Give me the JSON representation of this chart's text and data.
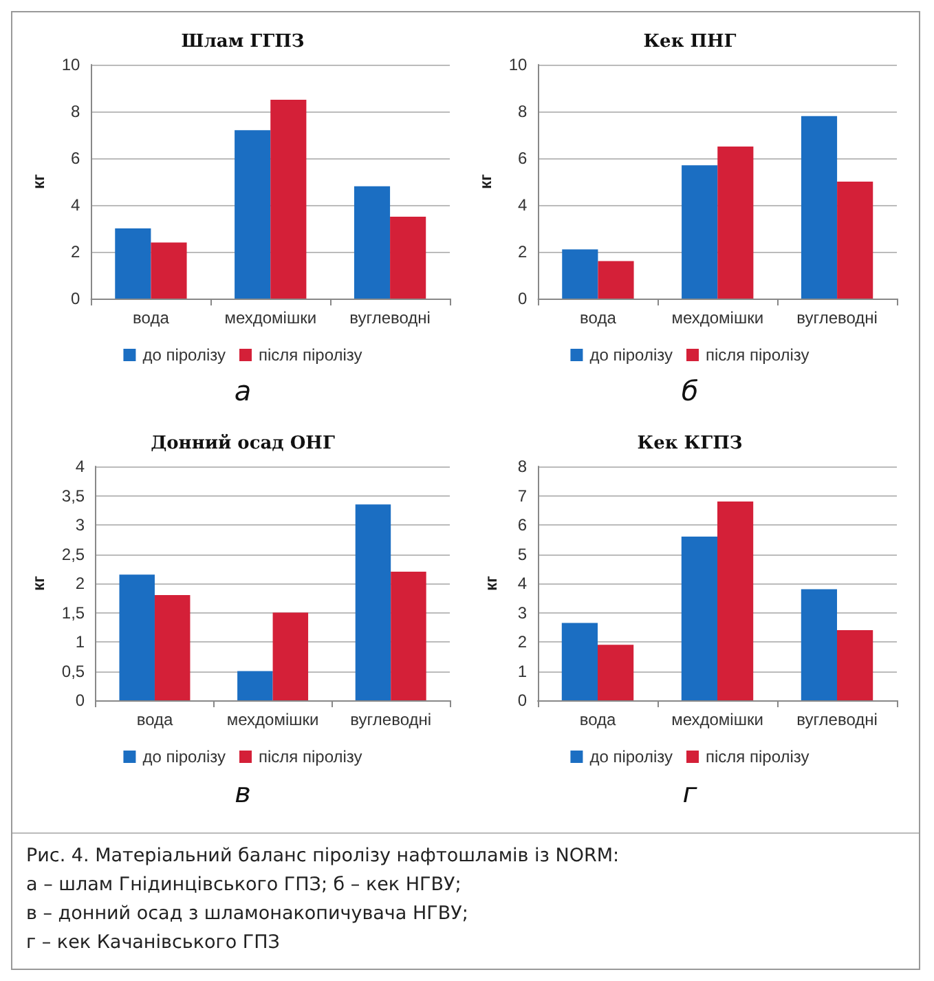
{
  "chart_data": [
    {
      "type": "bar",
      "title": "Шлам ГГПЗ",
      "ylabel": "кг",
      "categories": [
        "вода",
        "мехдомішки",
        "вуглеводні"
      ],
      "annotations": [
        "а"
      ],
      "series": [
        {
          "name": "до піролізу",
          "color": "#1b6ec2",
          "values": [
            3.0,
            7.2,
            4.8
          ]
        },
        {
          "name": "після піролізу",
          "color": "#d42038",
          "values": [
            2.4,
            8.5,
            3.5
          ]
        }
      ],
      "ylim": [
        0,
        10
      ],
      "yticks": [
        0,
        2,
        4,
        6,
        8,
        10
      ],
      "grid": "y",
      "legend": "bottom"
    },
    {
      "type": "bar",
      "title": "Кек ПНГ",
      "ylabel": "кг",
      "categories": [
        "вода",
        "мехдомішки",
        "вуглеводні"
      ],
      "annotations": [
        "б"
      ],
      "series": [
        {
          "name": "до піролізу",
          "color": "#1b6ec2",
          "values": [
            2.1,
            5.7,
            7.8
          ]
        },
        {
          "name": "після піролізу",
          "color": "#d42038",
          "values": [
            1.6,
            6.5,
            5.0
          ]
        }
      ],
      "ylim": [
        0,
        10
      ],
      "yticks": [
        0,
        2,
        4,
        6,
        8,
        10
      ],
      "grid": "y",
      "legend": "bottom"
    },
    {
      "type": "bar",
      "title": "Донний осад ОНГ",
      "ylabel": "кг",
      "categories": [
        "вода",
        "мехдомішки",
        "вуглеводні"
      ],
      "annotations": [
        "в"
      ],
      "series": [
        {
          "name": "до піролізу",
          "color": "#1b6ec2",
          "values": [
            2.15,
            0.5,
            3.35
          ]
        },
        {
          "name": "після піролізу",
          "color": "#d42038",
          "values": [
            1.8,
            1.5,
            2.2
          ]
        }
      ],
      "ylim": [
        0,
        4
      ],
      "yticks": [
        0,
        {
          "value": 0.5,
          "label": "0,5"
        },
        1,
        {
          "value": 1.5,
          "label": "1,5"
        },
        2,
        {
          "value": 2.5,
          "label": "2,5"
        },
        3,
        {
          "value": 3.5,
          "label": "3,5"
        },
        4
      ],
      "grid": "y",
      "legend": "bottom"
    },
    {
      "type": "bar",
      "title": "Кек КГПЗ",
      "ylabel": "кг",
      "categories": [
        "вода",
        "мехдомішки",
        "вуглеводні"
      ],
      "annotations": [
        "г"
      ],
      "series": [
        {
          "name": "до піролізу",
          "color": "#1b6ec2",
          "values": [
            2.65,
            5.6,
            3.8
          ]
        },
        {
          "name": "після піролізу",
          "color": "#d42038",
          "values": [
            1.9,
            6.8,
            2.4
          ]
        }
      ],
      "ylim": [
        0,
        8
      ],
      "yticks": [
        0,
        1,
        2,
        3,
        4,
        5,
        6,
        7,
        8
      ],
      "grid": "y",
      "legend": "bottom"
    },
    {
      "type": "other",
      "title": "Рис. 4. Матеріальний баланс піролізу нафтошламів із NORM:",
      "annotations": [
        "а – шлам Гнідинцівського ГПЗ; б – кек НГВУ;",
        "в – донний осад з шламонакопичувача НГВУ;",
        "г – кек Качанівського ГПЗ"
      ]
    }
  ]
}
